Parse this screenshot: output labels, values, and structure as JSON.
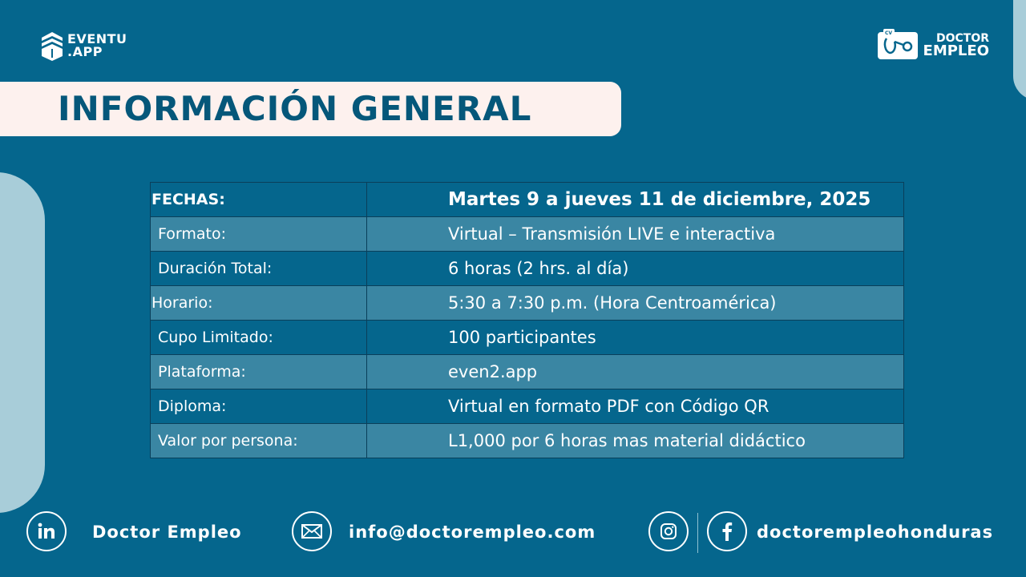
{
  "brand": {
    "eventu_logo": [
      "EVENTU",
      ".APP"
    ],
    "doctor_logo": [
      "DOCTOR",
      "EMPLEO"
    ],
    "doctor_badge": "CV"
  },
  "title": "INFORMACIÓN GENERAL",
  "table": {
    "rows": [
      {
        "label": "FECHAS:",
        "value": "Martes 9 a jueves 11 de diciembre, 2025"
      },
      {
        "label": "Formato:",
        "value": "Virtual – Transmisión LIVE e interactiva"
      },
      {
        "label": "Duración Total:",
        "value": "6 horas (2 hrs. al día)"
      },
      {
        "label": "Horario:",
        "value": "5:30 a 7:30 p.m. (Hora Centroamérica)"
      },
      {
        "label": "Cupo Limitado:",
        "value": "100 participantes"
      },
      {
        "label": "Plataforma:",
        "value": "even2.app"
      },
      {
        "label": "Diploma:",
        "value": "Virtual en formato PDF con Código QR"
      },
      {
        "label": "Valor por persona:",
        "value": "L1,000 por 6 horas mas material didáctico"
      }
    ]
  },
  "footer": {
    "linkedin": "Doctor Empleo",
    "email": "info@doctorempleo.com",
    "social": "doctorempleohonduras"
  },
  "icons": [
    "eventu-logo-icon",
    "doctor-empleo-logo-icon",
    "linkedin-icon",
    "email-icon",
    "instagram-icon",
    "facebook-icon"
  ],
  "colors": {
    "background": "#05668d",
    "row_light": "#3a86a3",
    "title_band": "#fdf1ee",
    "title_text": "#05577a",
    "accent_pill": "#a8cdd9"
  }
}
